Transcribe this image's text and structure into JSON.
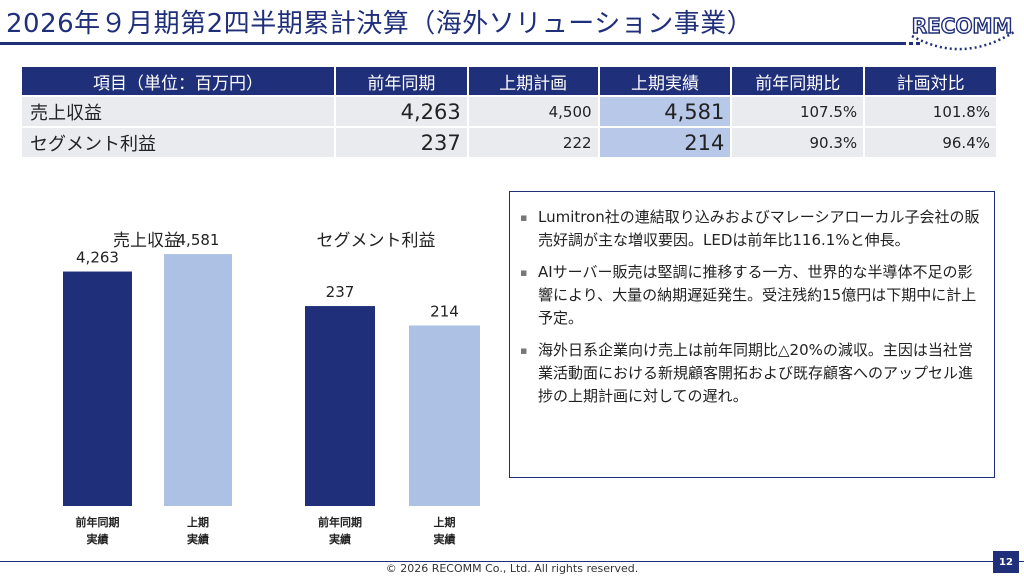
{
  "header": {
    "title": "2026年９月期第2四半期累計決算（海外ソリューション事業）",
    "logo_text": "RECOMM"
  },
  "colors": {
    "navy": "#1f2f7a",
    "light_blue": "#adc1e5",
    "highlight": "#b8c8e8",
    "row_bg": "#e9ebef"
  },
  "table": {
    "headers": [
      "項目（単位：百万円）",
      "前年同期",
      "上期計画",
      "上期実績",
      "前年同期比",
      "計画対比"
    ],
    "rows": [
      {
        "label": "売上収益",
        "prev": "4,263",
        "plan": "4,500",
        "actual": "4,581",
        "yoy": "107.5%",
        "vs_plan": "101.8%"
      },
      {
        "label": "セグメント利益",
        "prev": "237",
        "plan": "222",
        "actual": "214",
        "yoy": "90.3%",
        "vs_plan": "96.4%"
      }
    ]
  },
  "chart_data": [
    {
      "type": "bar",
      "title": "売上収益",
      "categories": [
        "前年同期\n実績",
        "上期\n実績"
      ],
      "values": [
        4263,
        4581
      ],
      "value_labels": [
        "4,263",
        "4,581"
      ],
      "colors": [
        "#1f2f7a",
        "#adc1e5"
      ],
      "ylim": [
        0,
        5200
      ],
      "grid": false
    },
    {
      "type": "bar",
      "title": "セグメント利益",
      "categories": [
        "前年同期\n実績",
        "上期\n実績"
      ],
      "values": [
        237,
        214
      ],
      "value_labels": [
        "237",
        "214"
      ],
      "colors": [
        "#1f2f7a",
        "#adc1e5"
      ],
      "ylim": [
        0,
        339
      ],
      "grid": false
    }
  ],
  "notes": [
    "Lumitron社の連結取り込みおよびマレーシアローカル子会社の販売好調が主な増収要因。LEDは前年比116.1%と伸長。",
    "AIサーバー販売は堅調に推移する一方、世界的な半導体不足の影響により、大量の納期遅延発生。受注残約15億円は下期中に計上予定。",
    "海外日系企業向け売上は前年同期比△20%の減収。主因は当社営業活動面における新規顧客開拓および既存顧客へのアップセル進捗の上期計画に対しての遅れ。"
  ],
  "footer": {
    "copyright": "© 2026 RECOMM Co., Ltd. All rights reserved.",
    "page_number": "12"
  }
}
